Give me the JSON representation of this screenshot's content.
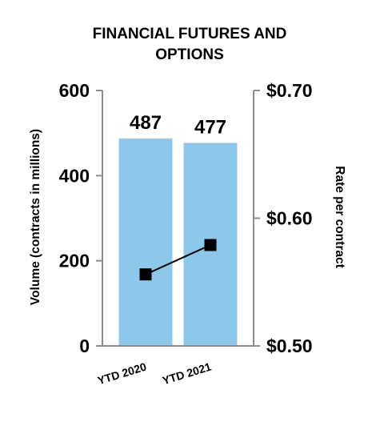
{
  "chart_data": {
    "type": "bar",
    "title_lines": [
      "FINANCIAL FUTURES AND",
      "OPTIONS"
    ],
    "categories": [
      "YTD 2020",
      "YTD 2021"
    ],
    "series": [
      {
        "type": "bar",
        "axis": "left",
        "values": [
          487,
          477
        ],
        "data_labels": [
          "487",
          "477"
        ],
        "color": "#8DC8EA"
      },
      {
        "type": "line",
        "axis": "right",
        "values": [
          0.556,
          0.579
        ],
        "color": "#000000",
        "marker": "square"
      }
    ],
    "ylabel": "Volume (contracts in millions)",
    "y2label": "Rate per contract",
    "ylim": [
      0,
      600
    ],
    "y2lim": [
      0.5,
      0.7
    ],
    "yticks": [
      "0",
      "200",
      "400",
      "600"
    ],
    "y2ticks": [
      "$0.50",
      "$0.60",
      "$0.70"
    ],
    "grid": false,
    "legend": "none"
  }
}
